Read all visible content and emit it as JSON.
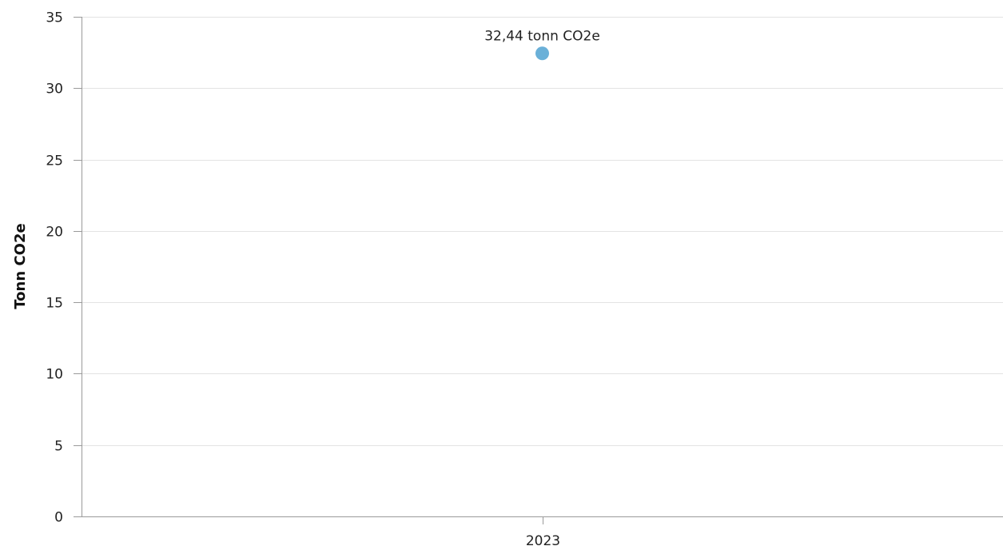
{
  "chart_data": {
    "type": "scatter",
    "categories": [
      "2023"
    ],
    "series": [
      {
        "values": [
          32.44
        ],
        "labels": [
          "32,44 tonn CO2e"
        ],
        "color": "#6ab0d8"
      }
    ],
    "ylabel": "Tonn CO2e",
    "xlabel": "",
    "ylim": [
      0,
      35
    ],
    "yticks": [
      0,
      5,
      10,
      15,
      20,
      25,
      30,
      35
    ],
    "grid": true,
    "legend": "none"
  },
  "colors": {
    "grid": "#e3e3e3",
    "axis": "#9a9a9a",
    "marker": "#6ab0d8"
  }
}
